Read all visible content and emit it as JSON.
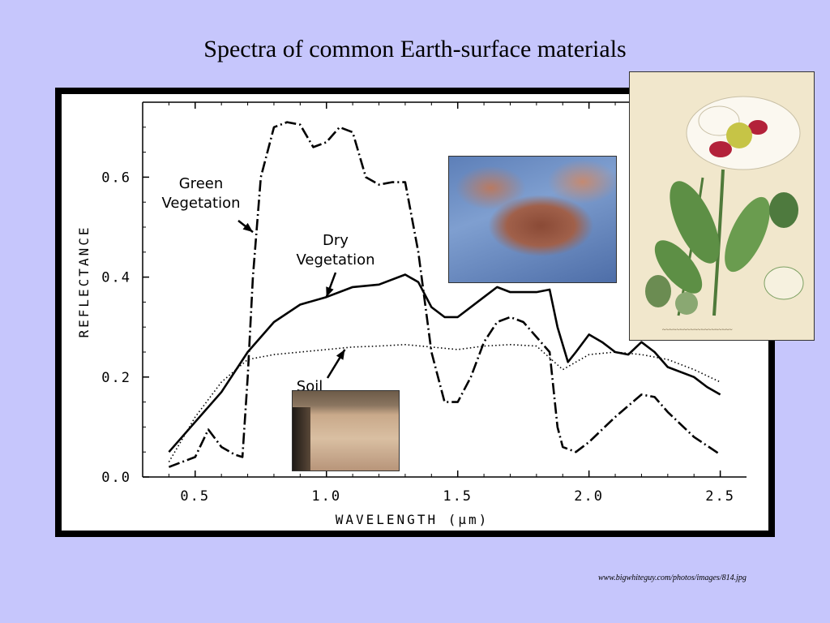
{
  "slide": {
    "title": "Spectra of common Earth-surface materials",
    "source_credit": "www.bigwhiteguy.com/photos/images/814.jpg"
  },
  "chart_data": {
    "type": "line",
    "title": "",
    "xlabel": "WAVELENGTH (μm)",
    "ylabel": "REFLECTANCE",
    "xlim": [
      0.3,
      2.6
    ],
    "ylim": [
      0.0,
      0.75
    ],
    "x_ticks": [
      "0.5",
      "1.0",
      "1.5",
      "2.0",
      "2.5"
    ],
    "y_ticks": [
      "0.0",
      "0.2",
      "0.4",
      "0.6"
    ],
    "grid": false,
    "series": [
      {
        "name": "Green Vegetation",
        "style": "dash-dot",
        "points": [
          [
            0.4,
            0.02
          ],
          [
            0.45,
            0.03
          ],
          [
            0.5,
            0.04
          ],
          [
            0.55,
            0.095
          ],
          [
            0.6,
            0.06
          ],
          [
            0.65,
            0.045
          ],
          [
            0.68,
            0.04
          ],
          [
            0.7,
            0.2
          ],
          [
            0.72,
            0.4
          ],
          [
            0.75,
            0.6
          ],
          [
            0.8,
            0.7
          ],
          [
            0.85,
            0.71
          ],
          [
            0.9,
            0.705
          ],
          [
            0.95,
            0.66
          ],
          [
            1.0,
            0.67
          ],
          [
            1.05,
            0.7
          ],
          [
            1.1,
            0.69
          ],
          [
            1.15,
            0.6
          ],
          [
            1.2,
            0.585
          ],
          [
            1.25,
            0.59
          ],
          [
            1.3,
            0.59
          ],
          [
            1.35,
            0.45
          ],
          [
            1.4,
            0.25
          ],
          [
            1.45,
            0.15
          ],
          [
            1.5,
            0.15
          ],
          [
            1.55,
            0.2
          ],
          [
            1.6,
            0.27
          ],
          [
            1.65,
            0.31
          ],
          [
            1.7,
            0.32
          ],
          [
            1.75,
            0.31
          ],
          [
            1.8,
            0.28
          ],
          [
            1.85,
            0.25
          ],
          [
            1.88,
            0.1
          ],
          [
            1.9,
            0.06
          ],
          [
            1.95,
            0.05
          ],
          [
            2.0,
            0.07
          ],
          [
            2.1,
            0.12
          ],
          [
            2.2,
            0.165
          ],
          [
            2.25,
            0.16
          ],
          [
            2.3,
            0.13
          ],
          [
            2.4,
            0.08
          ],
          [
            2.5,
            0.045
          ]
        ]
      },
      {
        "name": "Dry Vegetation",
        "style": "solid",
        "points": [
          [
            0.4,
            0.05
          ],
          [
            0.5,
            0.11
          ],
          [
            0.6,
            0.17
          ],
          [
            0.7,
            0.25
          ],
          [
            0.8,
            0.31
          ],
          [
            0.9,
            0.345
          ],
          [
            1.0,
            0.36
          ],
          [
            1.1,
            0.38
          ],
          [
            1.2,
            0.385
          ],
          [
            1.3,
            0.405
          ],
          [
            1.35,
            0.39
          ],
          [
            1.4,
            0.34
          ],
          [
            1.45,
            0.32
          ],
          [
            1.5,
            0.32
          ],
          [
            1.6,
            0.36
          ],
          [
            1.65,
            0.38
          ],
          [
            1.7,
            0.37
          ],
          [
            1.8,
            0.37
          ],
          [
            1.85,
            0.375
          ],
          [
            1.88,
            0.3
          ],
          [
            1.92,
            0.23
          ],
          [
            1.95,
            0.25
          ],
          [
            2.0,
            0.285
          ],
          [
            2.05,
            0.27
          ],
          [
            2.1,
            0.25
          ],
          [
            2.15,
            0.245
          ],
          [
            2.2,
            0.27
          ],
          [
            2.25,
            0.25
          ],
          [
            2.3,
            0.22
          ],
          [
            2.4,
            0.2
          ],
          [
            2.45,
            0.18
          ],
          [
            2.5,
            0.165
          ]
        ]
      },
      {
        "name": "Soil",
        "style": "dotted",
        "points": [
          [
            0.4,
            0.03
          ],
          [
            0.5,
            0.12
          ],
          [
            0.6,
            0.19
          ],
          [
            0.7,
            0.235
          ],
          [
            0.8,
            0.245
          ],
          [
            0.9,
            0.25
          ],
          [
            1.0,
            0.255
          ],
          [
            1.1,
            0.26
          ],
          [
            1.2,
            0.262
          ],
          [
            1.3,
            0.265
          ],
          [
            1.4,
            0.26
          ],
          [
            1.5,
            0.255
          ],
          [
            1.6,
            0.262
          ],
          [
            1.7,
            0.265
          ],
          [
            1.8,
            0.262
          ],
          [
            1.9,
            0.215
          ],
          [
            2.0,
            0.245
          ],
          [
            2.1,
            0.25
          ],
          [
            2.2,
            0.245
          ],
          [
            2.3,
            0.235
          ],
          [
            2.4,
            0.215
          ],
          [
            2.5,
            0.19
          ]
        ]
      }
    ],
    "annotations": [
      {
        "text_lines": [
          "Green",
          "Vegetation"
        ],
        "points_to": [
          0.72,
          0.49
        ]
      },
      {
        "text_lines": [
          "Dry",
          "Vegetation"
        ],
        "points_to": [
          1.0,
          0.36
        ]
      },
      {
        "text_lines": [
          "Soil"
        ],
        "points_to": [
          1.07,
          0.255
        ]
      }
    ]
  },
  "photos": [
    {
      "name": "dry-leaf-photo"
    },
    {
      "name": "soil-photo"
    },
    {
      "name": "poppy-illustration"
    }
  ]
}
